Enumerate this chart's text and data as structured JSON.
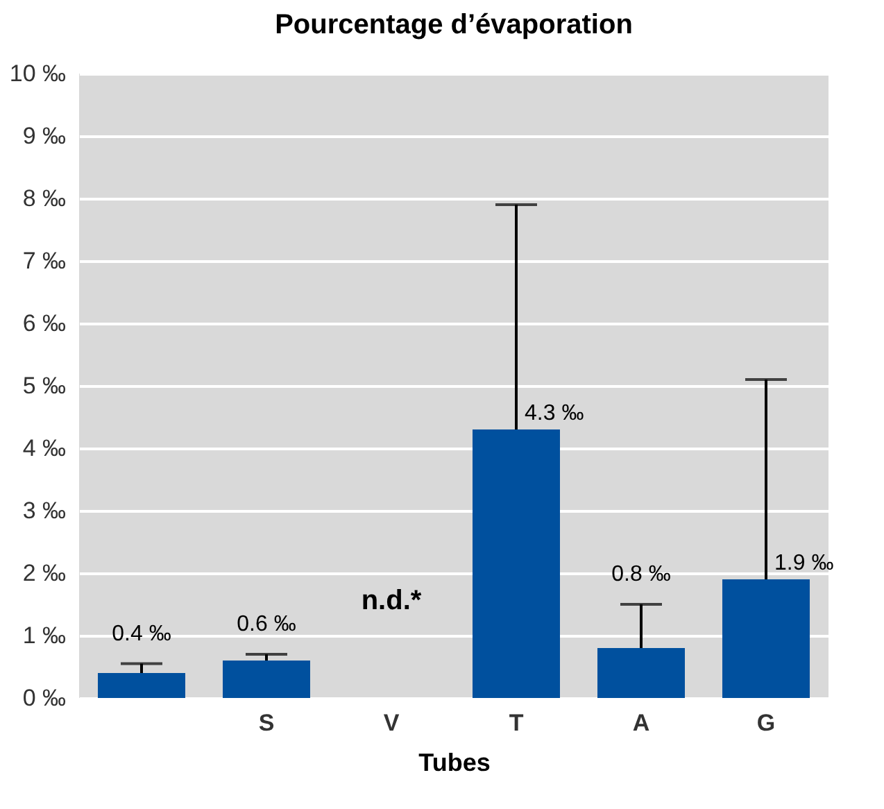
{
  "chart_data": {
    "type": "bar",
    "title": "Pourcentage d’évaporation",
    "xlabel": "Tubes",
    "categories": [
      null,
      "S",
      "V",
      "T",
      "A",
      "G"
    ],
    "values": [
      0.4,
      0.6,
      null,
      4.3,
      0.8,
      1.9
    ],
    "errors": [
      [
        0.4,
        0.55
      ],
      [
        0.6,
        0.7
      ],
      null,
      [
        4.3,
        7.9
      ],
      [
        0.8,
        1.5
      ],
      [
        1.9,
        5.1
      ]
    ],
    "value_labels": [
      "0.4 ‰",
      "0.6 ‰",
      "n.d.*",
      "4.3 ‰",
      "0.8 ‰",
      "1.9 ‰"
    ],
    "color": "#00509e",
    "ylim": [
      0,
      10
    ],
    "yticks": [
      {
        "value": 0,
        "label": "0 ‰"
      },
      {
        "value": 1,
        "label": "1 ‰"
      },
      {
        "value": 2,
        "label": "2 ‰"
      },
      {
        "value": 3,
        "label": "3 ‰"
      },
      {
        "value": 4,
        "label": "4 ‰"
      },
      {
        "value": 5,
        "label": "5 ‰"
      },
      {
        "value": 6,
        "label": "6 ‰"
      },
      {
        "value": 7,
        "label": "7 ‰"
      },
      {
        "value": 8,
        "label": "8 ‰"
      },
      {
        "value": 9,
        "label": "9 ‰"
      },
      {
        "value": 10,
        "label": "10 ‰"
      }
    ],
    "grid": "y"
  }
}
